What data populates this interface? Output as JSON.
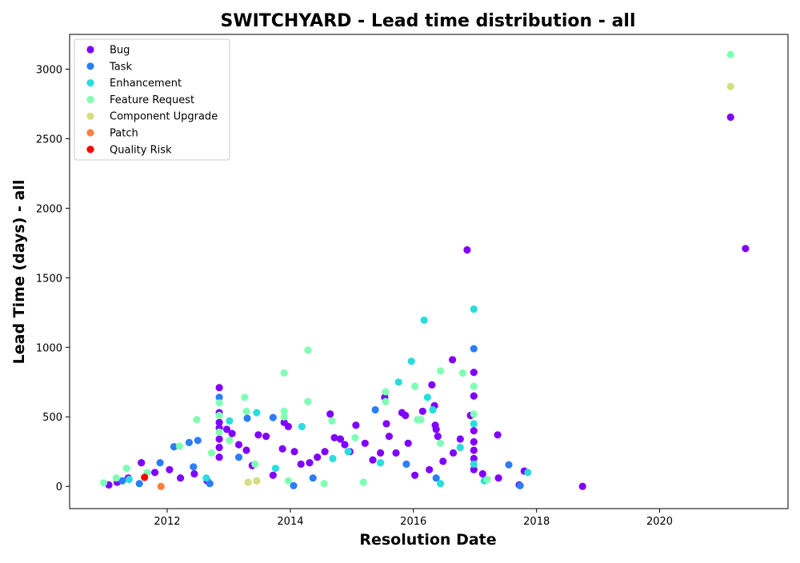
{
  "chart_data": {
    "type": "scatter",
    "title": "SWITCHYARD - Lead time distribution - all",
    "xlabel": "Resolution Date",
    "ylabel": "Lead Time (days) - all",
    "x_axis_type": "date",
    "xlim": [
      "2010-06-01",
      "2022-02-01"
    ],
    "ylim": [
      -160,
      3250
    ],
    "x_ticks": [
      "2012",
      "2014",
      "2016",
      "2018",
      "2020"
    ],
    "x_tick_dates": [
      "2012-01-01",
      "2014-01-01",
      "2016-01-01",
      "2018-01-01",
      "2020-01-01"
    ],
    "y_ticks": [
      0,
      500,
      1000,
      1500,
      2000,
      2500,
      3000
    ],
    "grid": false,
    "legend_position": "top-left",
    "series": [
      {
        "name": "Bug",
        "color": "#8000ff",
        "points": [
          {
            "x": "2011-01-20",
            "y": 10
          },
          {
            "x": "2011-03-10",
            "y": 30
          },
          {
            "x": "2011-05-15",
            "y": 60
          },
          {
            "x": "2011-08-01",
            "y": 170
          },
          {
            "x": "2011-10-20",
            "y": 100
          },
          {
            "x": "2012-01-15",
            "y": 120
          },
          {
            "x": "2012-03-20",
            "y": 60
          },
          {
            "x": "2012-06-10",
            "y": 90
          },
          {
            "x": "2012-08-25",
            "y": 40
          },
          {
            "x": "2012-11-05",
            "y": 710
          },
          {
            "x": "2012-11-05",
            "y": 530
          },
          {
            "x": "2012-11-05",
            "y": 460
          },
          {
            "x": "2012-11-05",
            "y": 420
          },
          {
            "x": "2012-11-05",
            "y": 340
          },
          {
            "x": "2012-11-05",
            "y": 280
          },
          {
            "x": "2012-11-05",
            "y": 210
          },
          {
            "x": "2012-12-20",
            "y": 410
          },
          {
            "x": "2013-01-20",
            "y": 380
          },
          {
            "x": "2013-03-01",
            "y": 300
          },
          {
            "x": "2013-04-15",
            "y": 260
          },
          {
            "x": "2013-05-20",
            "y": 150
          },
          {
            "x": "2013-06-25",
            "y": 370
          },
          {
            "x": "2013-08-10",
            "y": 360
          },
          {
            "x": "2013-09-20",
            "y": 80
          },
          {
            "x": "2013-11-15",
            "y": 270
          },
          {
            "x": "2013-11-25",
            "y": 460
          },
          {
            "x": "2013-12-20",
            "y": 430
          },
          {
            "x": "2014-01-25",
            "y": 250
          },
          {
            "x": "2014-03-05",
            "y": 160
          },
          {
            "x": "2014-04-25",
            "y": 170
          },
          {
            "x": "2014-06-10",
            "y": 210
          },
          {
            "x": "2014-07-25",
            "y": 250
          },
          {
            "x": "2014-08-25",
            "y": 520
          },
          {
            "x": "2014-09-20",
            "y": 350
          },
          {
            "x": "2014-10-25",
            "y": 340
          },
          {
            "x": "2014-11-20",
            "y": 300
          },
          {
            "x": "2014-12-20",
            "y": 250
          },
          {
            "x": "2015-01-25",
            "y": 440
          },
          {
            "x": "2015-03-20",
            "y": 310
          },
          {
            "x": "2015-05-05",
            "y": 190
          },
          {
            "x": "2015-06-20",
            "y": 240
          },
          {
            "x": "2015-07-15",
            "y": 640
          },
          {
            "x": "2015-07-25",
            "y": 450
          },
          {
            "x": "2015-08-10",
            "y": 360
          },
          {
            "x": "2015-09-20",
            "y": 240
          },
          {
            "x": "2015-10-25",
            "y": 530
          },
          {
            "x": "2015-11-15",
            "y": 510
          },
          {
            "x": "2015-12-01",
            "y": 310
          },
          {
            "x": "2016-01-10",
            "y": 80
          },
          {
            "x": "2016-02-25",
            "y": 540
          },
          {
            "x": "2016-04-05",
            "y": 120
          },
          {
            "x": "2016-04-20",
            "y": 730
          },
          {
            "x": "2016-05-05",
            "y": 580
          },
          {
            "x": "2016-05-10",
            "y": 440
          },
          {
            "x": "2016-05-15",
            "y": 410
          },
          {
            "x": "2016-05-25",
            "y": 360
          },
          {
            "x": "2016-06-25",
            "y": 180
          },
          {
            "x": "2016-08-20",
            "y": 910
          },
          {
            "x": "2016-08-25",
            "y": 240
          },
          {
            "x": "2016-10-05",
            "y": 340
          },
          {
            "x": "2016-11-15",
            "y": 1700
          },
          {
            "x": "2016-12-05",
            "y": 510
          },
          {
            "x": "2016-12-25",
            "y": 820
          },
          {
            "x": "2016-12-25",
            "y": 650
          },
          {
            "x": "2016-12-25",
            "y": 400
          },
          {
            "x": "2016-12-25",
            "y": 320
          },
          {
            "x": "2016-12-25",
            "y": 260
          },
          {
            "x": "2016-12-25",
            "y": 200
          },
          {
            "x": "2016-12-25",
            "y": 120
          },
          {
            "x": "2017-02-15",
            "y": 90
          },
          {
            "x": "2017-05-15",
            "y": 370
          },
          {
            "x": "2017-05-20",
            "y": 60
          },
          {
            "x": "2017-09-20",
            "y": 10
          },
          {
            "x": "2017-10-20",
            "y": 110
          },
          {
            "x": "2018-10-01",
            "y": 0
          },
          {
            "x": "2021-02-25",
            "y": 2655
          },
          {
            "x": "2021-05-25",
            "y": 1710
          }
        ]
      },
      {
        "name": "Task",
        "color": "#2c7ef7",
        "points": [
          {
            "x": "2011-04-10",
            "y": 40
          },
          {
            "x": "2011-07-20",
            "y": 20
          },
          {
            "x": "2011-11-20",
            "y": 170
          },
          {
            "x": "2012-02-10",
            "y": 285
          },
          {
            "x": "2012-05-10",
            "y": 315
          },
          {
            "x": "2012-07-01",
            "y": 330
          },
          {
            "x": "2012-06-05",
            "y": 140
          },
          {
            "x": "2012-11-05",
            "y": 640
          },
          {
            "x": "2013-03-01",
            "y": 210
          },
          {
            "x": "2013-04-20",
            "y": 490
          },
          {
            "x": "2013-09-20",
            "y": 495
          },
          {
            "x": "2014-05-15",
            "y": 60
          },
          {
            "x": "2015-05-20",
            "y": 550
          },
          {
            "x": "2015-11-20",
            "y": 160
          },
          {
            "x": "2016-05-15",
            "y": 60
          },
          {
            "x": "2016-12-25",
            "y": 990
          },
          {
            "x": "2017-07-20",
            "y": 155
          },
          {
            "x": "2017-09-25",
            "y": 5
          },
          {
            "x": "2012-09-10",
            "y": 20
          },
          {
            "x": "2014-01-20",
            "y": 5
          }
        ]
      },
      {
        "name": "Enhancement",
        "color": "#2adddd",
        "points": [
          {
            "x": "2011-05-20",
            "y": 50
          },
          {
            "x": "2012-08-20",
            "y": 60
          },
          {
            "x": "2013-01-05",
            "y": 470
          },
          {
            "x": "2013-06-15",
            "y": 530
          },
          {
            "x": "2013-10-05",
            "y": 130
          },
          {
            "x": "2014-03-10",
            "y": 430
          },
          {
            "x": "2014-09-10",
            "y": 200
          },
          {
            "x": "2014-12-10",
            "y": 250
          },
          {
            "x": "2015-06-20",
            "y": 170
          },
          {
            "x": "2015-10-05",
            "y": 750
          },
          {
            "x": "2015-12-20",
            "y": 900
          },
          {
            "x": "2016-03-05",
            "y": 1195
          },
          {
            "x": "2016-03-25",
            "y": 640
          },
          {
            "x": "2016-04-25",
            "y": 550
          },
          {
            "x": "2016-10-05",
            "y": 280
          },
          {
            "x": "2016-12-25",
            "y": 1275
          },
          {
            "x": "2016-12-25",
            "y": 450
          },
          {
            "x": "2016-12-25",
            "y": 160
          },
          {
            "x": "2017-02-25",
            "y": 40
          },
          {
            "x": "2017-11-10",
            "y": 100
          },
          {
            "x": "2016-06-10",
            "y": 20
          }
        ]
      },
      {
        "name": "Feature Request",
        "color": "#80ffb4",
        "points": [
          {
            "x": "2010-12-20",
            "y": 25
          },
          {
            "x": "2011-03-05",
            "y": 60
          },
          {
            "x": "2011-05-05",
            "y": 130
          },
          {
            "x": "2011-09-05",
            "y": 100
          },
          {
            "x": "2012-03-15",
            "y": 290
          },
          {
            "x": "2012-06-25",
            "y": 480
          },
          {
            "x": "2012-09-20",
            "y": 240
          },
          {
            "x": "2012-11-05",
            "y": 600
          },
          {
            "x": "2012-11-05",
            "y": 510
          },
          {
            "x": "2012-11-05",
            "y": 390
          },
          {
            "x": "2013-01-05",
            "y": 330
          },
          {
            "x": "2013-04-05",
            "y": 640
          },
          {
            "x": "2013-04-15",
            "y": 540
          },
          {
            "x": "2013-06-05",
            "y": 160
          },
          {
            "x": "2013-11-25",
            "y": 815
          },
          {
            "x": "2013-11-25",
            "y": 540
          },
          {
            "x": "2013-11-25",
            "y": 500
          },
          {
            "x": "2014-04-15",
            "y": 980
          },
          {
            "x": "2014-04-15",
            "y": 610
          },
          {
            "x": "2014-09-05",
            "y": 470
          },
          {
            "x": "2015-01-20",
            "y": 350
          },
          {
            "x": "2015-07-20",
            "y": 680
          },
          {
            "x": "2015-07-20",
            "y": 610
          },
          {
            "x": "2016-01-10",
            "y": 720
          },
          {
            "x": "2016-01-25",
            "y": 480
          },
          {
            "x": "2016-02-15",
            "y": 480
          },
          {
            "x": "2016-06-10",
            "y": 830
          },
          {
            "x": "2016-06-10",
            "y": 310
          },
          {
            "x": "2016-10-20",
            "y": 815
          },
          {
            "x": "2016-12-25",
            "y": 720
          },
          {
            "x": "2016-12-25",
            "y": 520
          },
          {
            "x": "2017-03-15",
            "y": 50
          },
          {
            "x": "2013-12-20",
            "y": 40
          },
          {
            "x": "2014-07-20",
            "y": 20
          },
          {
            "x": "2015-03-10",
            "y": 30
          },
          {
            "x": "2021-02-25",
            "y": 3105
          }
        ]
      },
      {
        "name": "Component Upgrade",
        "color": "#d4dd80",
        "points": [
          {
            "x": "2013-04-25",
            "y": 30
          },
          {
            "x": "2013-06-15",
            "y": 40
          },
          {
            "x": "2021-02-25",
            "y": 2875
          }
        ]
      },
      {
        "name": "Patch",
        "color": "#ff7e41",
        "points": [
          {
            "x": "2011-11-25",
            "y": 0
          }
        ]
      },
      {
        "name": "Quality Risk",
        "color": "#ff0000",
        "points": [
          {
            "x": "2011-08-20",
            "y": 65
          }
        ]
      }
    ]
  }
}
